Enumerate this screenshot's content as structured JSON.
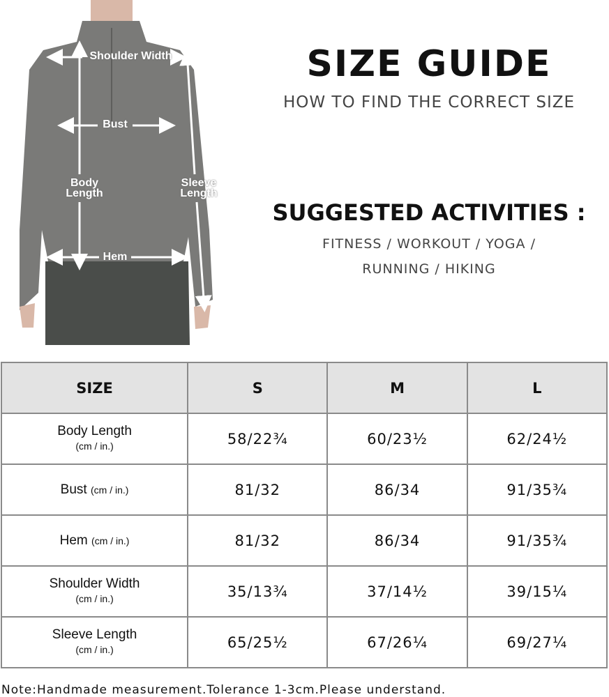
{
  "figure": {
    "labels": {
      "shoulder_width": "Shoulder Width",
      "bust": "Bust",
      "body_length": "Body\nLength",
      "sleeve_length": "Sleeve\nLength",
      "hem": "Hem"
    },
    "colors": {
      "shirt": "#7a7a78",
      "leggings": "#4a4d4a",
      "skin": "#d9b8a8"
    }
  },
  "header": {
    "title": "SIZE GUIDE",
    "subtitle": "HOW TO FIND THE CORRECT SIZE",
    "activities_title": "SUGGESTED ACTIVITIES :",
    "activities_line1": "FITNESS / WORKOUT / YOGA /",
    "activities_line2": "RUNNING / HIKING"
  },
  "table": {
    "headers": [
      "SIZE",
      "S",
      "M",
      "L"
    ],
    "unit": "(cm / in.)",
    "rows": [
      {
        "label": "Body Length",
        "values": [
          "58/22¾",
          "60/23½",
          "62/24½"
        ]
      },
      {
        "label": "Bust",
        "values": [
          "81/32",
          "86/34",
          "91/35¾"
        ]
      },
      {
        "label": "Hem",
        "values": [
          "81/32",
          "86/34",
          "91/35¾"
        ]
      },
      {
        "label": "Shoulder Width",
        "values": [
          "35/13¾",
          "37/14½",
          "39/15¼"
        ]
      },
      {
        "label": "Sleeve Length",
        "values": [
          "65/25½",
          "67/26¼",
          "69/27¼"
        ]
      }
    ],
    "colors": {
      "header_bg": "#e3e3e3",
      "border": "#8a8a8a"
    }
  },
  "note": "Note:Handmade measurement.Tolerance 1-3cm.Please understand."
}
